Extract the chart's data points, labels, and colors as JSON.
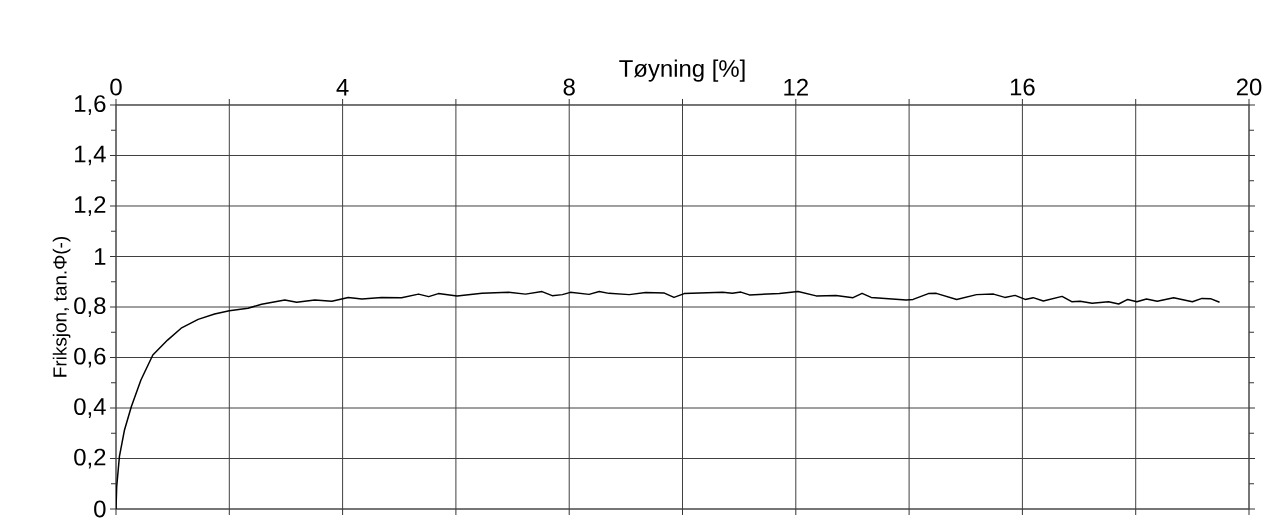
{
  "chart_data": {
    "type": "line",
    "xlabel": "Tøyning [%]",
    "ylabel": "Friksjon, tan.Φ(-)",
    "xlim": [
      0,
      20
    ],
    "ylim": [
      0,
      1.6
    ],
    "xticks": [
      0,
      {
        "value": 2,
        "label": null
      },
      4,
      {
        "value": 6,
        "label": null
      },
      8,
      {
        "value": 10,
        "label": null
      },
      12,
      {
        "value": 14,
        "label": null
      },
      16,
      {
        "value": 18,
        "label": null
      },
      20
    ],
    "yticks": [
      0,
      {
        "value": 0.1,
        "label": null
      },
      {
        "value": 0.2,
        "label": "0,2"
      },
      {
        "value": 0.3,
        "label": null
      },
      {
        "value": 0.4,
        "label": "0,4"
      },
      {
        "value": 0.5,
        "label": null
      },
      {
        "value": 0.6,
        "label": "0,6"
      },
      {
        "value": 0.7,
        "label": null
      },
      {
        "value": 0.8,
        "label": "0,8"
      },
      {
        "value": 0.9,
        "label": null
      },
      1,
      {
        "value": 1.1,
        "label": null
      },
      {
        "value": 1.2,
        "label": "1,2"
      },
      {
        "value": 1.3,
        "label": null
      },
      {
        "value": 1.4,
        "label": "1,4"
      },
      {
        "value": 1.5,
        "label": null
      },
      {
        "value": 1.6,
        "label": "1,6"
      }
    ],
    "grid": true,
    "line_style": "solid",
    "series": [
      {
        "color": "#000000",
        "x": [
          0,
          0.012,
          0.06,
          0.15,
          0.27,
          0.44,
          0.65,
          0.91,
          1.15,
          1.45,
          1.74,
          2.0,
          2.33,
          2.57,
          2.98,
          3.19,
          3.51,
          3.81,
          4.1,
          4.34,
          4.69,
          5.04,
          5.34,
          5.52,
          5.69,
          6.02,
          6.46,
          6.93,
          7.23,
          7.52,
          7.7,
          7.88,
          8.02,
          8.35,
          8.53,
          8.7,
          9.06,
          9.35,
          9.68,
          9.85,
          10.03,
          10.71,
          10.88,
          11.03,
          11.18,
          11.71,
          12.04,
          12.36,
          12.71,
          13.01,
          13.17,
          13.33,
          13.95,
          14.07,
          14.34,
          14.48,
          14.84,
          15.19,
          15.49,
          15.69,
          15.87,
          16.05,
          16.19,
          16.37,
          16.7,
          16.87,
          17.02,
          17.23,
          17.52,
          17.7,
          17.86,
          18.02,
          18.19,
          18.38,
          18.67,
          19.0,
          19.17,
          19.32,
          19.48
        ],
        "values": [
          0,
          0.088,
          0.207,
          0.313,
          0.405,
          0.511,
          0.61,
          0.669,
          0.716,
          0.751,
          0.772,
          0.785,
          0.795,
          0.811,
          0.828,
          0.819,
          0.828,
          0.823,
          0.838,
          0.832,
          0.838,
          0.837,
          0.851,
          0.841,
          0.853,
          0.844,
          0.854,
          0.858,
          0.851,
          0.861,
          0.845,
          0.849,
          0.858,
          0.85,
          0.861,
          0.854,
          0.849,
          0.857,
          0.855,
          0.838,
          0.853,
          0.858,
          0.854,
          0.859,
          0.848,
          0.853,
          0.861,
          0.844,
          0.846,
          0.837,
          0.854,
          0.838,
          0.828,
          0.83,
          0.853,
          0.854,
          0.83,
          0.849,
          0.851,
          0.838,
          0.846,
          0.83,
          0.837,
          0.824,
          0.842,
          0.821,
          0.823,
          0.815,
          0.821,
          0.812,
          0.83,
          0.821,
          0.832,
          0.823,
          0.837,
          0.821,
          0.834,
          0.833,
          0.819
        ]
      }
    ]
  }
}
